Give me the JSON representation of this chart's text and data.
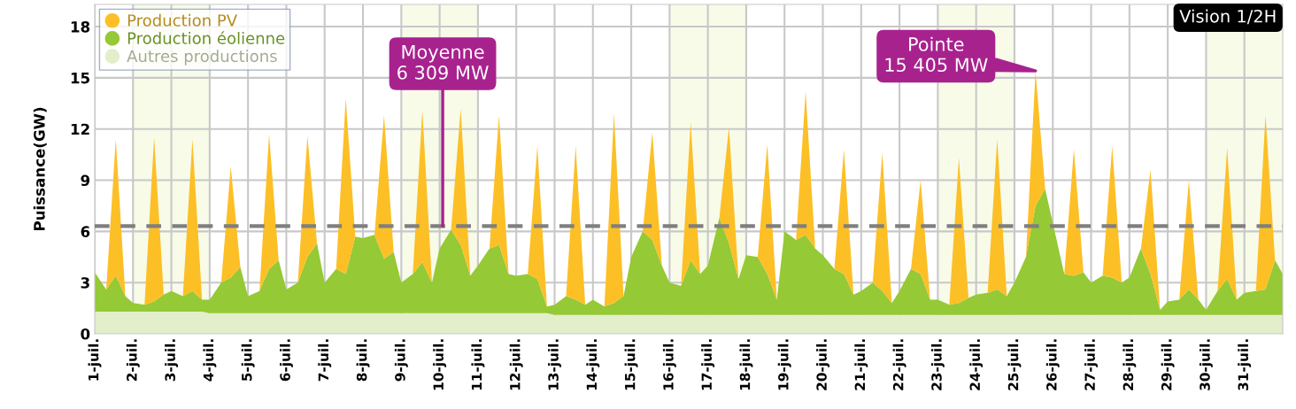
{
  "chart_data": {
    "type": "area",
    "stacked": true,
    "ylabel": "Puissance(GW)",
    "x": [
      1,
      1.3,
      1.55,
      1.8,
      2,
      2.3,
      2.55,
      2.8,
      3,
      3.3,
      3.55,
      3.8,
      4,
      4.3,
      4.55,
      4.8,
      5,
      5.3,
      5.55,
      5.8,
      6,
      6.3,
      6.55,
      6.8,
      7,
      7.3,
      7.55,
      7.8,
      8,
      8.3,
      8.55,
      8.8,
      9,
      9.3,
      9.55,
      9.8,
      10,
      10.3,
      10.55,
      10.8,
      11,
      11.3,
      11.55,
      11.8,
      12,
      12.3,
      12.55,
      12.8,
      13,
      13.3,
      13.55,
      13.8,
      14,
      14.3,
      14.55,
      14.8,
      15,
      15.3,
      15.55,
      15.8,
      16,
      16.3,
      16.55,
      16.8,
      17,
      17.3,
      17.55,
      17.8,
      18,
      18.3,
      18.55,
      18.8,
      19,
      19.3,
      19.55,
      19.8,
      20,
      20.3,
      20.55,
      20.8,
      21,
      21.3,
      21.55,
      21.8,
      22,
      22.3,
      22.55,
      22.8,
      23,
      23.3,
      23.55,
      23.8,
      24,
      24.3,
      24.55,
      24.8,
      25,
      25.3,
      25.55,
      25.8,
      26,
      26.3,
      26.55,
      26.8,
      27,
      27.3,
      27.55,
      27.8,
      28,
      28.3,
      28.55,
      28.8,
      29,
      29.3,
      29.55,
      29.8,
      30,
      30.3,
      30.55,
      30.8,
      31,
      31.3,
      31.55,
      31.8,
      32
    ],
    "series": [
      {
        "name": "Autres productions",
        "color": "#e2efca",
        "values": [
          1.3,
          1.3,
          1.3,
          1.3,
          1.3,
          1.3,
          1.3,
          1.3,
          1.3,
          1.3,
          1.3,
          1.3,
          1.2,
          1.2,
          1.2,
          1.2,
          1.2,
          1.2,
          1.2,
          1.2,
          1.2,
          1.2,
          1.2,
          1.2,
          1.2,
          1.2,
          1.2,
          1.2,
          1.2,
          1.2,
          1.2,
          1.2,
          1.2,
          1.2,
          1.2,
          1.2,
          1.2,
          1.2,
          1.2,
          1.2,
          1.2,
          1.2,
          1.2,
          1.2,
          1.2,
          1.2,
          1.2,
          1.2,
          1.1,
          1.1,
          1.1,
          1.1,
          1.1,
          1.1,
          1.1,
          1.1,
          1.1,
          1.1,
          1.1,
          1.1,
          1.1,
          1.1,
          1.1,
          1.1,
          1.1,
          1.1,
          1.1,
          1.1,
          1.1,
          1.1,
          1.1,
          1.1,
          1.1,
          1.1,
          1.1,
          1.1,
          1.1,
          1.1,
          1.1,
          1.1,
          1.1,
          1.1,
          1.1,
          1.1,
          1.1,
          1.1,
          1.1,
          1.1,
          1.1,
          1.1,
          1.1,
          1.1,
          1.1,
          1.1,
          1.1,
          1.1,
          1.1,
          1.1,
          1.1,
          1.1,
          1.1,
          1.1,
          1.1,
          1.1,
          1.1,
          1.1,
          1.1,
          1.1,
          1.1,
          1.1,
          1.1,
          1.1,
          1.1,
          1.1,
          1.1,
          1.1,
          1.1,
          1.1,
          1.1,
          1.1,
          1.1,
          1.1,
          1.1,
          1.1,
          1.1
        ]
      },
      {
        "name": "Production éolienne",
        "color": "#95c935",
        "values": [
          2.3,
          1.3,
          2.1,
          0.9,
          0.5,
          0.4,
          0.6,
          1.0,
          1.2,
          0.9,
          1.2,
          0.7,
          0.8,
          1.8,
          2.1,
          2.7,
          1.0,
          1.3,
          2.6,
          3.1,
          1.4,
          1.8,
          3.3,
          4.1,
          1.8,
          2.6,
          2.3,
          4.5,
          4.4,
          4.6,
          3.2,
          3.6,
          1.8,
          2.3,
          3.0,
          1.8,
          3.8,
          4.9,
          4.0,
          2.2,
          2.8,
          3.8,
          4.0,
          2.3,
          2.2,
          2.3,
          2.0,
          0.4,
          0.6,
          1.1,
          0.9,
          0.6,
          0.9,
          0.5,
          0.7,
          1.1,
          3.4,
          4.9,
          4.4,
          2.9,
          1.9,
          1.7,
          3.2,
          2.4,
          2.9,
          5.7,
          4.2,
          2.1,
          3.5,
          3.4,
          2.4,
          0.9,
          4.9,
          4.4,
          4.7,
          3.9,
          3.5,
          2.7,
          2.4,
          1.2,
          1.4,
          1.9,
          1.4,
          0.7,
          1.4,
          2.7,
          2.4,
          0.9,
          0.9,
          0.6,
          0.7,
          1.0,
          1.2,
          1.3,
          1.5,
          1.1,
          1.9,
          3.4,
          6.4,
          7.4,
          5.4,
          2.4,
          2.3,
          2.5,
          1.9,
          2.3,
          2.2,
          1.9,
          2.2,
          3.9,
          2.4,
          0.3,
          0.8,
          0.9,
          1.5,
          0.9,
          0.3,
          1.4,
          2.1,
          0.9,
          1.3,
          1.4,
          1.5,
          3.2,
          2.4
        ]
      },
      {
        "name": "Production PV",
        "color": "#fdbf26",
        "values": [
          0,
          0,
          8.0,
          0,
          0,
          0,
          9.6,
          0,
          0,
          0,
          8.9,
          0,
          0,
          0,
          6.5,
          0,
          0,
          0,
          7.9,
          0,
          0,
          0,
          7.1,
          0,
          0,
          0,
          10.3,
          0,
          0,
          0,
          8.4,
          0,
          0,
          0,
          8.9,
          0,
          0,
          0,
          8.0,
          0,
          0,
          0,
          7.6,
          0,
          0,
          0,
          7.8,
          0,
          0,
          0,
          9.0,
          0,
          0,
          0,
          11.1,
          0,
          0,
          0,
          6.3,
          0,
          0,
          0,
          8.1,
          0,
          0,
          0,
          6.8,
          0,
          0,
          0,
          7.6,
          0,
          0,
          0,
          8.4,
          0,
          0,
          0,
          7.3,
          0,
          0,
          0,
          8.1,
          0,
          0,
          0,
          5.5,
          0,
          0,
          0,
          8.5,
          0,
          0,
          0,
          8.8,
          0,
          0,
          0,
          7.9,
          0,
          0,
          0,
          7.4,
          0,
          0,
          0,
          7.7,
          0,
          0,
          0,
          6.1,
          0,
          0,
          0,
          6.4,
          0,
          0,
          0,
          7.7,
          0,
          0,
          0,
          10.2,
          0,
          0
        ]
      }
    ],
    "xlim": [
      1,
      32
    ],
    "xticks": [
      {
        "value": 1,
        "label": "1-juil."
      },
      {
        "value": 2,
        "label": "2-juil."
      },
      {
        "value": 3,
        "label": "3-juil."
      },
      {
        "value": 4,
        "label": "4-juil."
      },
      {
        "value": 5,
        "label": "5-juil."
      },
      {
        "value": 6,
        "label": "6-juil."
      },
      {
        "value": 7,
        "label": "7-juil."
      },
      {
        "value": 8,
        "label": "8-juil."
      },
      {
        "value": 9,
        "label": "9-juil."
      },
      {
        "value": 10,
        "label": "10-juil."
      },
      {
        "value": 11,
        "label": "11-juil."
      },
      {
        "value": 12,
        "label": "12-juil."
      },
      {
        "value": 13,
        "label": "13-juil."
      },
      {
        "value": 14,
        "label": "14-juil."
      },
      {
        "value": 15,
        "label": "15-juil."
      },
      {
        "value": 16,
        "label": "16-juil."
      },
      {
        "value": 17,
        "label": "17-juil."
      },
      {
        "value": 18,
        "label": "18-juil."
      },
      {
        "value": 19,
        "label": "19-juil."
      },
      {
        "value": 20,
        "label": "20-juil."
      },
      {
        "value": 21,
        "label": "21-juil."
      },
      {
        "value": 22,
        "label": "22-juil."
      },
      {
        "value": 23,
        "label": "23-juil."
      },
      {
        "value": 24,
        "label": "24-juil."
      },
      {
        "value": 25,
        "label": "25-juil."
      },
      {
        "value": 26,
        "label": "26-juil."
      },
      {
        "value": 27,
        "label": "27-juil."
      },
      {
        "value": 28,
        "label": "28-juil."
      },
      {
        "value": 29,
        "label": "29-juil."
      },
      {
        "value": 30,
        "label": "30-juil."
      },
      {
        "value": 31,
        "label": "31-juil."
      }
    ],
    "ylim": [
      0,
      19.3
    ],
    "yticks": [
      0,
      3,
      6,
      9,
      12,
      15,
      18
    ],
    "grid": true,
    "legend": "top left",
    "ref_lines": [
      {
        "axis": "y",
        "value": 6.309,
        "color": "#7f7f7f",
        "line_style": "dashed"
      }
    ],
    "bands": [
      {
        "axis": "x",
        "from": 2,
        "to": 4,
        "color": "#f7fbe8"
      },
      {
        "axis": "x",
        "from": 9,
        "to": 11,
        "color": "#f7fbe8"
      },
      {
        "axis": "x",
        "from": 16,
        "to": 18,
        "color": "#f7fbe8"
      },
      {
        "axis": "x",
        "from": 23,
        "to": 25,
        "color": "#f7fbe8"
      },
      {
        "axis": "x",
        "from": 30,
        "to": 32,
        "color": "#f7fbe8"
      }
    ],
    "annotations": [
      {
        "text": "Moyenne\n6 309 MW",
        "x": 10.08,
        "y": 6.309
      },
      {
        "text": "Pointe\n15 405 MW",
        "x": 25.55,
        "y": 15.405
      },
      "Vision 1/2H"
    ]
  }
}
